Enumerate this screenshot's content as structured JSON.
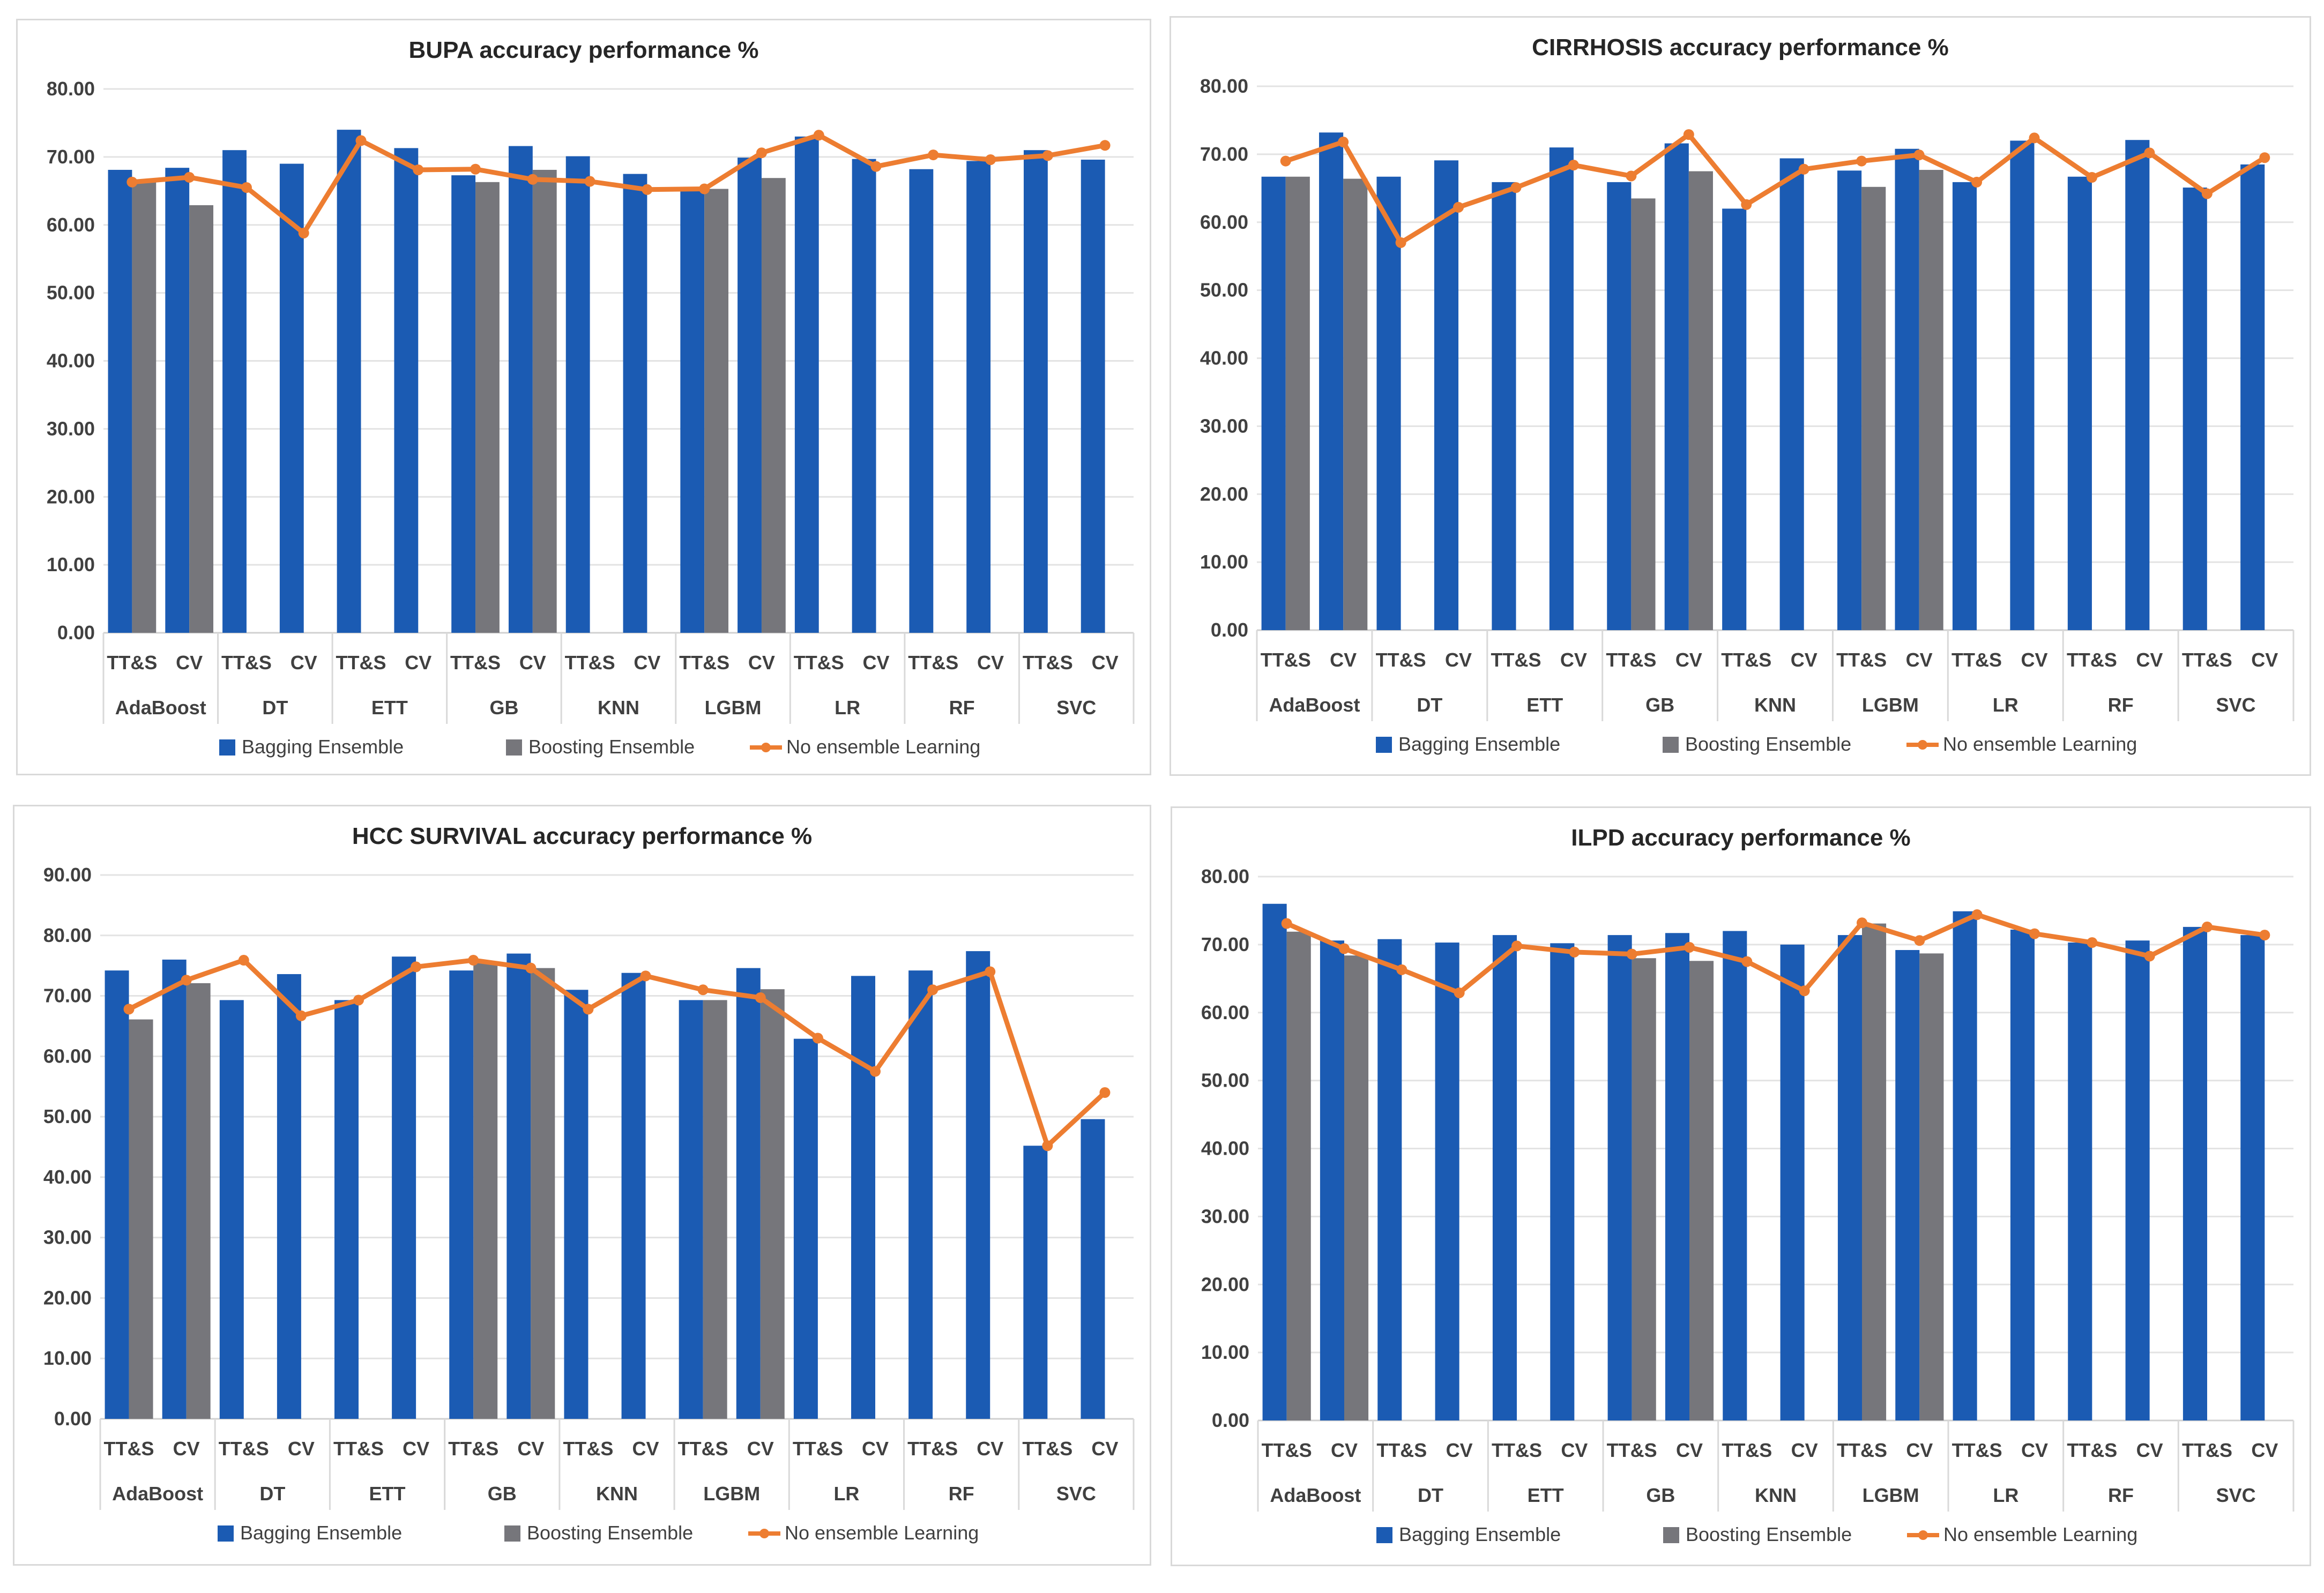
{
  "colors": {
    "bagging": "#1b5bb3",
    "boosting": "#76767b",
    "none": "#ed7d31",
    "grid": "#e3e3e3"
  },
  "legend": [
    "Bagging Ensemble",
    "Boosting Ensemble",
    "No ensemble Learning"
  ],
  "chart_data": [
    {
      "type": "bar",
      "title": "BUPA accuracy performance %",
      "ylim": [
        0,
        80
      ],
      "yticks": [
        "0.00",
        "10.00",
        "20.00",
        "30.00",
        "40.00",
        "50.00",
        "60.00",
        "70.00",
        "80.00"
      ],
      "groups": [
        "AdaBoost",
        "DT",
        "ETT",
        "GB",
        "KNN",
        "LGBM",
        "LR",
        "RF",
        "SVC"
      ],
      "subcategories": [
        "TT&S",
        "CV"
      ],
      "series": [
        {
          "name": "Bagging Ensemble",
          "kind": "bar",
          "values": [
            68.1,
            68.4,
            71.0,
            69.0,
            74.0,
            71.3,
            67.3,
            71.6,
            70.1,
            67.5,
            65.3,
            69.9,
            73.0,
            69.7,
            68.2,
            69.4,
            71.0,
            69.6
          ]
        },
        {
          "name": "Boosting Ensemble",
          "kind": "bar",
          "values": [
            66.4,
            62.9,
            null,
            null,
            null,
            null,
            66.3,
            68.1,
            null,
            null,
            65.3,
            66.9,
            null,
            null,
            null,
            null,
            null,
            null
          ]
        },
        {
          "name": "No ensemble Learning",
          "kind": "line",
          "values": [
            66.3,
            67.0,
            65.5,
            58.8,
            72.4,
            68.1,
            68.2,
            66.7,
            66.4,
            65.2,
            65.3,
            70.6,
            73.2,
            68.6,
            70.3,
            69.6,
            70.2,
            71.7
          ]
        }
      ],
      "legend_position": "bottom"
    },
    {
      "type": "bar",
      "title": "CIRRHOSIS accuracy performance %",
      "ylim": [
        0,
        80
      ],
      "yticks": [
        "0.00",
        "10.00",
        "20.00",
        "30.00",
        "40.00",
        "50.00",
        "60.00",
        "70.00",
        "80.00"
      ],
      "groups": [
        "AdaBoost",
        "DT",
        "ETT",
        "GB",
        "KNN",
        "LGBM",
        "LR",
        "RF",
        "SVC"
      ],
      "subcategories": [
        "TT&S",
        "CV"
      ],
      "series": [
        {
          "name": "Bagging Ensemble",
          "kind": "bar",
          "values": [
            66.7,
            73.2,
            66.7,
            69.1,
            65.9,
            71.0,
            65.9,
            71.6,
            62.0,
            69.4,
            67.6,
            70.8,
            65.9,
            72.0,
            66.7,
            72.1,
            65.1,
            68.5
          ]
        },
        {
          "name": "Boosting Ensemble",
          "kind": "bar",
          "values": [
            66.7,
            66.4,
            null,
            null,
            null,
            null,
            63.5,
            67.5,
            null,
            null,
            65.2,
            67.7,
            null,
            null,
            null,
            null,
            null,
            null
          ]
        },
        {
          "name": "No ensemble Learning",
          "kind": "line",
          "values": [
            69.0,
            71.8,
            57.0,
            62.2,
            65.1,
            68.4,
            66.8,
            72.9,
            62.6,
            67.8,
            69.0,
            69.9,
            65.9,
            72.4,
            66.6,
            70.2,
            64.2,
            69.5
          ]
        }
      ],
      "legend_position": "bottom"
    },
    {
      "type": "bar",
      "title": "HCC SURVIVAL accuracy performance %",
      "ylim": [
        0,
        90
      ],
      "yticks": [
        "0.00",
        "10.00",
        "20.00",
        "30.00",
        "40.00",
        "50.00",
        "60.00",
        "70.00",
        "80.00",
        "90.00"
      ],
      "groups": [
        "AdaBoost",
        "DT",
        "ETT",
        "GB",
        "KNN",
        "LGBM",
        "LR",
        "RF",
        "SVC"
      ],
      "subcategories": [
        "TT&S",
        "CV"
      ],
      "series": [
        {
          "name": "Bagging Ensemble",
          "kind": "bar",
          "values": [
            74.2,
            76.0,
            69.3,
            73.6,
            69.3,
            76.5,
            74.2,
            77.0,
            71.0,
            73.8,
            69.3,
            74.6,
            62.9,
            73.3,
            74.2,
            77.4,
            45.2,
            49.6
          ]
        },
        {
          "name": "Boosting Ensemble",
          "kind": "bar",
          "values": [
            66.1,
            72.1,
            null,
            null,
            null,
            null,
            75.5,
            74.6,
            null,
            null,
            69.3,
            71.1,
            null,
            null,
            null,
            null,
            null,
            null
          ]
        },
        {
          "name": "No ensemble Learning",
          "kind": "line",
          "values": [
            67.8,
            72.6,
            75.9,
            66.7,
            69.3,
            74.8,
            75.9,
            74.6,
            67.8,
            73.3,
            71.0,
            69.7,
            63.0,
            57.5,
            71.0,
            74.0,
            45.2,
            54.0
          ]
        }
      ],
      "legend_position": "bottom"
    },
    {
      "type": "bar",
      "title": "ILPD accuracy performance %",
      "ylim": [
        0,
        80
      ],
      "yticks": [
        "0.00",
        "10.00",
        "20.00",
        "30.00",
        "40.00",
        "50.00",
        "60.00",
        "70.00",
        "80.00"
      ],
      "groups": [
        "AdaBoost",
        "DT",
        "ETT",
        "GB",
        "KNN",
        "LGBM",
        "LR",
        "RF",
        "SVC"
      ],
      "subcategories": [
        "TT&S",
        "CV"
      ],
      "series": [
        {
          "name": "Bagging Ensemble",
          "kind": "bar",
          "values": [
            76.0,
            70.6,
            70.8,
            70.3,
            71.4,
            70.2,
            71.4,
            71.7,
            72.0,
            70.0,
            71.4,
            69.2,
            74.9,
            72.2,
            70.3,
            70.6,
            72.6,
            71.4
          ]
        },
        {
          "name": "Boosting Ensemble",
          "kind": "bar",
          "values": [
            71.9,
            68.4,
            null,
            null,
            null,
            null,
            68.0,
            67.6,
            null,
            null,
            73.1,
            68.7,
            null,
            null,
            null,
            null,
            null,
            null
          ]
        },
        {
          "name": "No ensemble Learning",
          "kind": "line",
          "values": [
            73.1,
            69.4,
            66.3,
            62.9,
            69.8,
            68.9,
            68.6,
            69.6,
            67.5,
            63.2,
            73.2,
            70.6,
            74.4,
            71.6,
            70.3,
            68.3,
            72.6,
            71.4
          ]
        }
      ],
      "legend_position": "bottom"
    }
  ]
}
